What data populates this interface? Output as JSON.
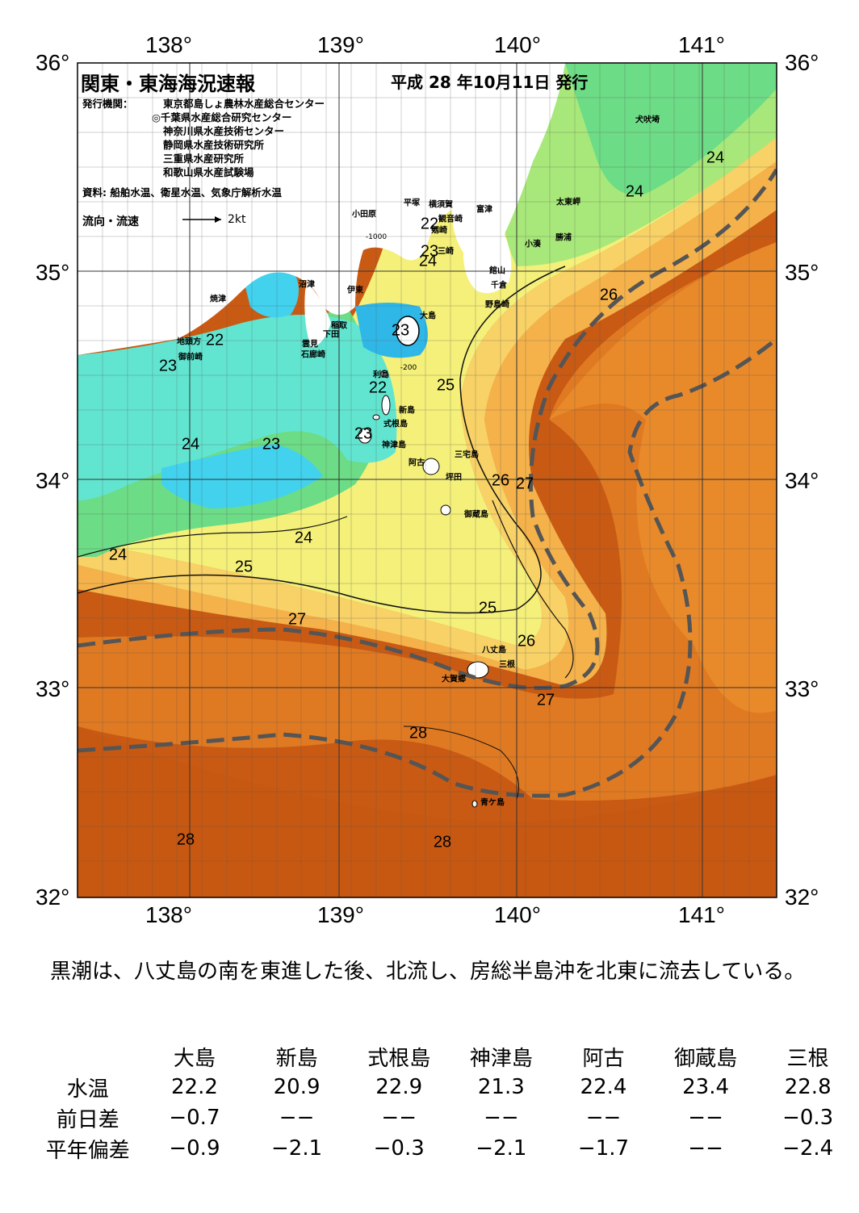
{
  "header": {
    "title": "関東・東海海況速報",
    "issue_date": "平成 28 年10月11日 発行",
    "issuer_label": "発行機関：",
    "issuers": [
      "東京都島しょ農林水産総合センター",
      "◎千葉県水産総合研究センター",
      "神奈川県水産技術センター",
      "静岡県水産技術研究所",
      "三重県水産研究所",
      "和歌山県水産試験場"
    ],
    "source": "資料: 船舶水温、衛星水温、気象庁解析水温",
    "flow_label": "流向・流速",
    "flow_scale": "2kt"
  },
  "map": {
    "lon_labels": [
      "138°",
      "139°",
      "140°",
      "141°"
    ],
    "lat_labels": [
      "36°",
      "35°",
      "34°",
      "33°",
      "32°"
    ],
    "isotherm_labels": [
      "22",
      "22",
      "22",
      "23",
      "23",
      "23",
      "23",
      "23",
      "24",
      "24",
      "24",
      "24",
      "24",
      "24",
      "25",
      "25",
      "25",
      "26",
      "26",
      "26",
      "27",
      "27",
      "27",
      "28",
      "28",
      "28"
    ],
    "depth_labels": [
      "-1000",
      "-200"
    ],
    "places": [
      "犬吠埼",
      "太東岬",
      "勝浦",
      "小湊",
      "富津",
      "館山",
      "千倉",
      "野島崎",
      "横須賀",
      "観音崎",
      "剱崎",
      "三崎",
      "平塚",
      "小田原",
      "沼津",
      "伊東",
      "焼津",
      "稲取",
      "下田",
      "雲見",
      "石廊崎",
      "地頭方",
      "御前崎",
      "大島",
      "利島",
      "新島",
      "式根島",
      "神津島",
      "阿古",
      "三宅島",
      "坪田",
      "御蔵島",
      "八丈島",
      "三根",
      "大賀郷",
      "青ケ島"
    ],
    "colors": {
      "t20": "#2fb7e8",
      "t21": "#42d2ee",
      "t22": "#62e5d0",
      "t23": "#6ddc86",
      "t24": "#a8e87a",
      "t25": "#f4f07a",
      "t26": "#f8d266",
      "t27": "#f5b24a",
      "t28": "#e88a28",
      "t29": "#d56a1c",
      "t30": "#c85a14",
      "land": "#ffffff",
      "kuroshio": "#555555"
    }
  },
  "summary": "黒潮は、八丈島の南を東進した後、北流し、房総半島沖を北東に流去している。",
  "table": {
    "columns": [
      "大島",
      "新島",
      "式根島",
      "神津島",
      "阿古",
      "御蔵島",
      "三根"
    ],
    "rows": [
      {
        "label": "水温",
        "values": [
          "22.2",
          "20.9",
          "22.9",
          "21.3",
          "22.4",
          "23.4",
          "22.8"
        ]
      },
      {
        "label": "前日差",
        "values": [
          "−0.7",
          "−−",
          "−−",
          "−−",
          "−−",
          "−−",
          "−0.3"
        ]
      },
      {
        "label": "平年偏差",
        "values": [
          "−0.9",
          "−2.1",
          "−0.3",
          "−2.1",
          "−1.7",
          "−−",
          "−2.4"
        ]
      }
    ]
  }
}
